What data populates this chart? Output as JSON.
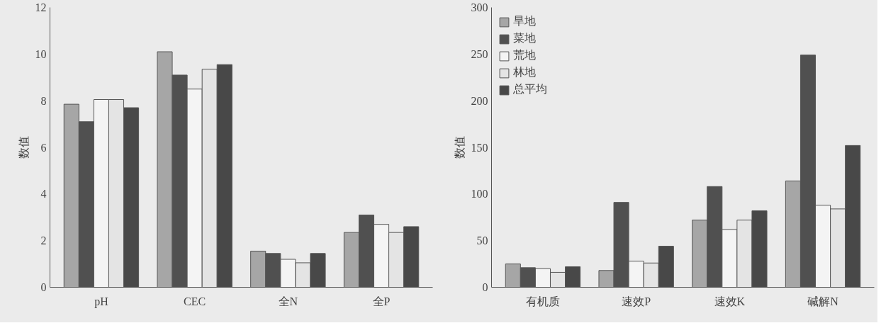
{
  "chart_data": [
    {
      "type": "bar",
      "ylabel": "数值",
      "categories": [
        "pH",
        "CEC",
        "全N",
        "全P"
      ],
      "ylim": [
        0,
        12
      ],
      "yticks": [
        0,
        2,
        4,
        6,
        8,
        10,
        12
      ],
      "grid": false,
      "legend": false,
      "series": [
        {
          "color": "#a6a6a6",
          "values": [
            7.85,
            10.1,
            1.55,
            2.35
          ]
        },
        {
          "color": "#505050",
          "values": [
            7.1,
            9.1,
            1.45,
            3.1
          ]
        },
        {
          "color": "#f4f4f4",
          "values": [
            8.05,
            8.5,
            1.2,
            2.7
          ]
        },
        {
          "color": "#e4e4e4",
          "values": [
            8.05,
            9.35,
            1.05,
            2.35
          ]
        },
        {
          "color": "#484848",
          "values": [
            7.7,
            9.55,
            1.45,
            2.6
          ]
        }
      ]
    },
    {
      "type": "bar",
      "ylabel": "数值",
      "categories": [
        "有机质",
        "速效P",
        "速效K",
        "碱解N"
      ],
      "ylim": [
        0,
        300
      ],
      "yticks": [
        0,
        50,
        100,
        150,
        200,
        250,
        300
      ],
      "grid": false,
      "legend": "top left",
      "series": [
        {
          "name": "旱地",
          "color": "#a6a6a6",
          "values": [
            25,
            18,
            72,
            114
          ]
        },
        {
          "name": "菜地",
          "color": "#505050",
          "values": [
            21,
            91,
            108,
            249
          ]
        },
        {
          "name": "荒地",
          "color": "#f4f4f4",
          "values": [
            20,
            28,
            62,
            88
          ]
        },
        {
          "name": "林地",
          "color": "#e4e4e4",
          "values": [
            16,
            26,
            72,
            84
          ]
        },
        {
          "name": "总平均",
          "color": "#484848",
          "values": [
            22,
            44,
            82,
            152
          ]
        }
      ]
    }
  ]
}
